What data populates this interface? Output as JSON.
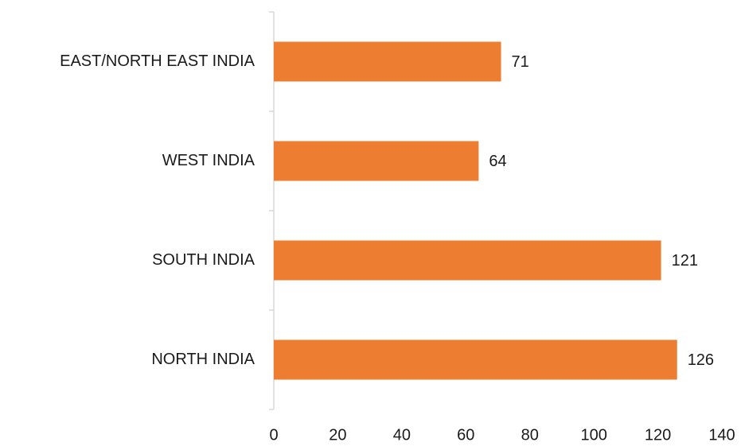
{
  "chart_data": {
    "type": "bar",
    "orientation": "horizontal",
    "categories": [
      "EAST/NORTH EAST INDIA",
      "WEST INDIA",
      "SOUTH INDIA",
      "NORTH INDIA"
    ],
    "values": [
      71,
      64,
      121,
      126
    ],
    "color": "#ed7d31",
    "xlim": [
      0,
      140
    ],
    "xticks": [
      0,
      20,
      40,
      60,
      80,
      100,
      120,
      140
    ],
    "grid": false
  }
}
